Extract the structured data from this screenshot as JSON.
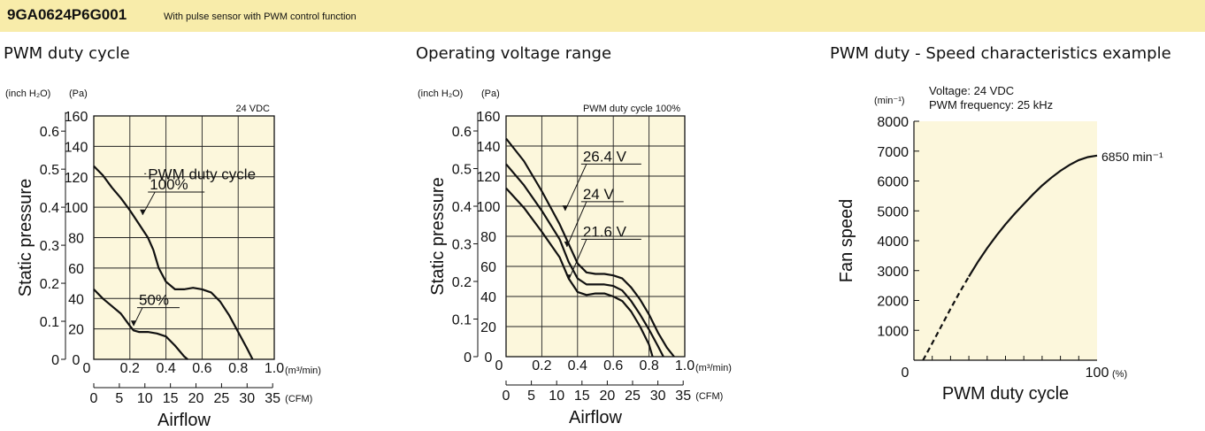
{
  "header": {
    "model": "9GA0624P6G001",
    "description": "With pulse sensor with PWM control function"
  },
  "chart_data": [
    {
      "type": "line",
      "title": "PWM duty cycle",
      "annotation": "24 VDC",
      "xlabel": "Airflow",
      "ylabel": "Static pressure",
      "x_unit": "(m³/min)",
      "x2_unit": "(CFM)",
      "y_unit_left": "(inch H₂O)",
      "y_unit_right": "(Pa)",
      "xlim": [
        0,
        1.0
      ],
      "ylim": [
        0,
        160
      ],
      "x_ticks": [
        "0",
        "0.2",
        "0.4",
        "0.6",
        "0.8",
        "1.0"
      ],
      "x2_ticks": [
        "0",
        "5",
        "10",
        "15",
        "20",
        "25",
        "30",
        "35"
      ],
      "y_ticks_pa": [
        "0",
        "20",
        "40",
        "60",
        "80",
        "100",
        "120",
        "140",
        "160"
      ],
      "y_ticks_inch": [
        "0",
        "0.1",
        "0.2",
        "0.3",
        "0.4",
        "0.5",
        "0.6"
      ],
      "grid": true,
      "legend_label": "PWM duty cycle",
      "series": [
        {
          "name": "100%",
          "x": [
            0,
            0.05,
            0.1,
            0.15,
            0.2,
            0.25,
            0.3,
            0.33,
            0.36,
            0.4,
            0.45,
            0.5,
            0.55,
            0.6,
            0.65,
            0.7,
            0.75,
            0.8,
            0.85,
            0.88
          ],
          "y": [
            127,
            121,
            113,
            106,
            98,
            89,
            80,
            72,
            60,
            51,
            46,
            46,
            47,
            46,
            44,
            38,
            29,
            18,
            7,
            0
          ]
        },
        {
          "name": "50%",
          "x": [
            0,
            0.05,
            0.1,
            0.15,
            0.2,
            0.22,
            0.25,
            0.3,
            0.35,
            0.4,
            0.45,
            0.5,
            0.52
          ],
          "y": [
            46,
            40,
            35,
            30,
            22,
            19,
            18,
            18,
            17,
            15,
            9,
            2,
            0
          ]
        }
      ]
    },
    {
      "type": "line",
      "title": "Operating voltage range",
      "annotation": "PWM duty cycle 100%",
      "xlabel": "Airflow",
      "ylabel": "Static pressure",
      "x_unit": "(m³/min)",
      "x2_unit": "(CFM)",
      "y_unit_left": "(inch H₂O)",
      "y_unit_right": "(Pa)",
      "xlim": [
        0,
        1.0
      ],
      "ylim": [
        0,
        160
      ],
      "x_ticks": [
        "0",
        "0.2",
        "0.4",
        "0.6",
        "0.8",
        "1.0"
      ],
      "x2_ticks": [
        "0",
        "5",
        "10",
        "15",
        "20",
        "25",
        "30",
        "35"
      ],
      "y_ticks_pa": [
        "0",
        "20",
        "40",
        "60",
        "80",
        "100",
        "120",
        "140",
        "160"
      ],
      "y_ticks_inch": [
        "0",
        "0.1",
        "0.2",
        "0.3",
        "0.4",
        "0.5",
        "0.6"
      ],
      "grid": true,
      "series": [
        {
          "name": "26.4 V",
          "x": [
            0,
            0.1,
            0.2,
            0.3,
            0.35,
            0.4,
            0.45,
            0.5,
            0.55,
            0.6,
            0.65,
            0.7,
            0.75,
            0.8,
            0.85,
            0.9,
            0.94
          ],
          "y": [
            145,
            130,
            110,
            88,
            75,
            62,
            56,
            55,
            55,
            54,
            52,
            46,
            38,
            28,
            16,
            6,
            0
          ]
        },
        {
          "name": "24 V",
          "x": [
            0,
            0.1,
            0.2,
            0.3,
            0.35,
            0.4,
            0.45,
            0.5,
            0.55,
            0.6,
            0.65,
            0.7,
            0.75,
            0.8,
            0.85,
            0.88
          ],
          "y": [
            128,
            114,
            97,
            78,
            63,
            52,
            48,
            48,
            48,
            47,
            44,
            37,
            28,
            18,
            7,
            0
          ]
        },
        {
          "name": "21.6 V",
          "x": [
            0,
            0.1,
            0.2,
            0.3,
            0.35,
            0.4,
            0.45,
            0.5,
            0.55,
            0.6,
            0.65,
            0.7,
            0.75,
            0.8,
            0.82
          ],
          "y": [
            112,
            99,
            83,
            66,
            52,
            43,
            41,
            42,
            42,
            40,
            37,
            30,
            20,
            8,
            0
          ]
        }
      ]
    },
    {
      "type": "line",
      "title": "PWM duty - Speed characteristics example",
      "annotation_lines": [
        "Voltage: 24 VDC",
        "PWM frequency: 25 kHz"
      ],
      "xlabel": "PWM duty cycle",
      "ylabel": "Fan speed",
      "x_unit": "(%)",
      "y_unit": "(min⁻¹)",
      "xlim": [
        0,
        100
      ],
      "ylim": [
        0,
        8000
      ],
      "x_ticks": [
        "0",
        "100"
      ],
      "y_ticks": [
        "1000",
        "2000",
        "3000",
        "4000",
        "5000",
        "6000",
        "7000",
        "8000"
      ],
      "grid": false,
      "end_label": "6850 min⁻¹",
      "series": [
        {
          "name": "dashed",
          "style": "dashed",
          "x": [
            5,
            10,
            15,
            20,
            25,
            30
          ],
          "y": [
            0,
            570,
            1140,
            1720,
            2280,
            2800
          ]
        },
        {
          "name": "solid",
          "style": "solid",
          "x": [
            30,
            35,
            40,
            45,
            50,
            55,
            60,
            65,
            70,
            75,
            80,
            85,
            90,
            95,
            100
          ],
          "y": [
            2800,
            3300,
            3750,
            4170,
            4550,
            4900,
            5230,
            5550,
            5850,
            6110,
            6340,
            6540,
            6700,
            6800,
            6850
          ]
        }
      ]
    }
  ]
}
